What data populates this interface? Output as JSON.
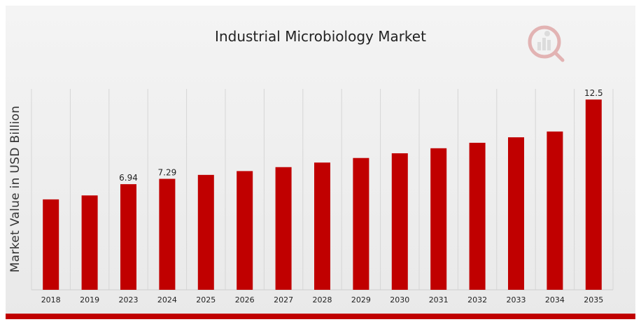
{
  "chart_data": {
    "type": "bar",
    "title": "Industrial Microbiology Market",
    "ylabel": "Market Value in USD Billion",
    "xlabel": "",
    "categories": [
      "2018",
      "2019",
      "2023",
      "2024",
      "2025",
      "2026",
      "2027",
      "2028",
      "2029",
      "2030",
      "2031",
      "2032",
      "2033",
      "2034",
      "2035"
    ],
    "values": [
      5.94,
      6.2,
      6.94,
      7.29,
      7.55,
      7.8,
      8.06,
      8.36,
      8.66,
      8.97,
      9.3,
      9.66,
      10.02,
      10.4,
      12.5
    ],
    "data_labels": {
      "2023": "6.94",
      "2024": "7.29",
      "2035": "12.5"
    },
    "ylim": [
      0,
      13.2
    ],
    "bar_color": "#c00000",
    "grid": "vertical",
    "legend": "none"
  }
}
